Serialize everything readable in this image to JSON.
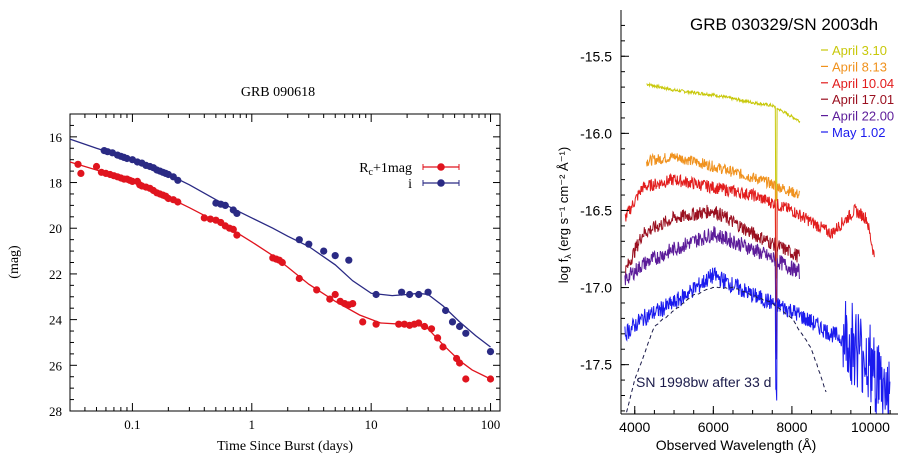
{
  "chart_data": [
    {
      "type": "scatter",
      "title": "GRB 090618",
      "xlabel": "Time Since Burst (days)",
      "ylabel": "(mag)",
      "xscale": "log",
      "xlim": [
        0.03,
        120
      ],
      "ylim": [
        28,
        15
      ],
      "y_inverted": true,
      "xticks": [
        {
          "v": 0.1,
          "label": "0.1"
        },
        {
          "v": 1,
          "label": "1"
        },
        {
          "v": 10,
          "label": "10"
        },
        {
          "v": 100,
          "label": "100"
        }
      ],
      "yticks": [
        16,
        18,
        20,
        22,
        24,
        26,
        28
      ],
      "legend_position": "top-right",
      "grid": false,
      "series": [
        {
          "name": "Rc+1mag",
          "legend_main": "R",
          "legend_sub": "c",
          "legend_rest": "+1mag",
          "color": "#e0141e",
          "points": [
            [
              0.035,
              17.2
            ],
            [
              0.037,
              17.6
            ],
            [
              0.05,
              17.3
            ],
            [
              0.055,
              17.55
            ],
            [
              0.06,
              17.6
            ],
            [
              0.065,
              17.65
            ],
            [
              0.07,
              17.7
            ],
            [
              0.075,
              17.75
            ],
            [
              0.08,
              17.8
            ],
            [
              0.085,
              17.85
            ],
            [
              0.09,
              17.85
            ],
            [
              0.095,
              17.9
            ],
            [
              0.1,
              17.95
            ],
            [
              0.11,
              17.95
            ],
            [
              0.115,
              18.1
            ],
            [
              0.12,
              18.15
            ],
            [
              0.13,
              18.2
            ],
            [
              0.14,
              18.25
            ],
            [
              0.15,
              18.35
            ],
            [
              0.16,
              18.45
            ],
            [
              0.17,
              18.5
            ],
            [
              0.18,
              18.55
            ],
            [
              0.19,
              18.6
            ],
            [
              0.2,
              18.7
            ],
            [
              0.22,
              18.75
            ],
            [
              0.24,
              18.85
            ],
            [
              0.4,
              19.55
            ],
            [
              0.45,
              19.6
            ],
            [
              0.5,
              19.65
            ],
            [
              0.55,
              19.75
            ],
            [
              0.6,
              19.9
            ],
            [
              0.65,
              20.0
            ],
            [
              0.7,
              20.05
            ],
            [
              0.75,
              20.3
            ],
            [
              1.5,
              21.3
            ],
            [
              1.6,
              21.35
            ],
            [
              1.7,
              21.4
            ],
            [
              1.8,
              21.5
            ],
            [
              2.5,
              22.2
            ],
            [
              3.5,
              22.7
            ],
            [
              4.5,
              23.1
            ],
            [
              5.0,
              22.9
            ],
            [
              5.5,
              23.2
            ],
            [
              6.0,
              23.3
            ],
            [
              6.5,
              23.35
            ],
            [
              7.0,
              23.3
            ],
            [
              8.5,
              24.1
            ],
            [
              11,
              24.2
            ],
            [
              17,
              24.2
            ],
            [
              19,
              24.2
            ],
            [
              21,
              24.25
            ],
            [
              23,
              24.2
            ],
            [
              25,
              24.15
            ],
            [
              28,
              24.3
            ],
            [
              32,
              24.4
            ],
            [
              36,
              24.8
            ],
            [
              40,
              25.2
            ],
            [
              52,
              25.7
            ],
            [
              55,
              25.9
            ],
            [
              62,
              26.6
            ],
            [
              100,
              26.6
            ]
          ],
          "curve": [
            [
              0.03,
              17.1
            ],
            [
              0.05,
              17.45
            ],
            [
              0.1,
              17.95
            ],
            [
              0.2,
              18.65
            ],
            [
              0.3,
              19.1
            ],
            [
              0.5,
              19.7
            ],
            [
              0.7,
              20.1
            ],
            [
              1,
              20.6
            ],
            [
              1.5,
              21.2
            ],
            [
              2,
              21.7
            ],
            [
              3,
              22.45
            ],
            [
              5,
              23.2
            ],
            [
              8,
              23.8
            ],
            [
              12,
              24.15
            ],
            [
              18,
              24.2
            ],
            [
              25,
              24.25
            ],
            [
              30,
              24.4
            ],
            [
              40,
              25.1
            ],
            [
              55,
              25.8
            ],
            [
              70,
              26.2
            ],
            [
              100,
              26.6
            ]
          ]
        },
        {
          "name": "i",
          "legend_main": "i",
          "legend_sub": "",
          "legend_rest": "",
          "color": "#2a2a84",
          "points": [
            [
              0.058,
              16.6
            ],
            [
              0.062,
              16.65
            ],
            [
              0.068,
              16.7
            ],
            [
              0.075,
              16.8
            ],
            [
              0.08,
              16.85
            ],
            [
              0.085,
              16.9
            ],
            [
              0.09,
              16.95
            ],
            [
              0.1,
              17.0
            ],
            [
              0.11,
              17.1
            ],
            [
              0.12,
              17.15
            ],
            [
              0.13,
              17.25
            ],
            [
              0.14,
              17.3
            ],
            [
              0.15,
              17.35
            ],
            [
              0.16,
              17.45
            ],
            [
              0.17,
              17.5
            ],
            [
              0.18,
              17.55
            ],
            [
              0.19,
              17.6
            ],
            [
              0.2,
              17.65
            ],
            [
              0.22,
              17.75
            ],
            [
              0.24,
              17.9
            ],
            [
              0.5,
              18.9
            ],
            [
              0.55,
              18.95
            ],
            [
              0.6,
              19.0
            ],
            [
              0.7,
              19.2
            ],
            [
              0.75,
              19.35
            ],
            [
              2.5,
              20.5
            ],
            [
              3.0,
              20.7
            ],
            [
              4.0,
              21.0
            ],
            [
              5.0,
              21.2
            ],
            [
              6.5,
              21.4
            ],
            [
              11,
              22.9
            ],
            [
              18,
              22.8
            ],
            [
              21,
              22.9
            ],
            [
              25,
              22.9
            ],
            [
              30,
              22.8
            ],
            [
              42,
              23.6
            ],
            [
              48,
              24.1
            ],
            [
              55,
              24.3
            ],
            [
              62,
              24.6
            ],
            [
              100,
              25.4
            ]
          ],
          "curve": [
            [
              0.03,
              16.1
            ],
            [
              0.05,
              16.5
            ],
            [
              0.1,
              17.0
            ],
            [
              0.2,
              17.65
            ],
            [
              0.3,
              18.1
            ],
            [
              0.5,
              18.75
            ],
            [
              0.7,
              19.15
            ],
            [
              1,
              19.55
            ],
            [
              1.5,
              20.0
            ],
            [
              2,
              20.35
            ],
            [
              3,
              20.8
            ],
            [
              5,
              21.6
            ],
            [
              7,
              22.3
            ],
            [
              10,
              22.85
            ],
            [
              15,
              22.95
            ],
            [
              20,
              22.9
            ],
            [
              25,
              22.85
            ],
            [
              30,
              22.9
            ],
            [
              40,
              23.4
            ],
            [
              55,
              24.1
            ],
            [
              75,
              24.7
            ],
            [
              100,
              25.2
            ]
          ]
        }
      ]
    },
    {
      "type": "line",
      "title": "GRB 030329/SN 2003dh",
      "xlabel": "Observed Wavelength (Å)",
      "ylabel_main": "log f",
      "ylabel_sub": "λ",
      "ylabel_units": "(erg s⁻¹ cm⁻² Å⁻¹)",
      "xlim": [
        3650,
        10700
      ],
      "ylim": [
        -17.82,
        -15.2
      ],
      "xticks": [
        4000,
        6000,
        8000,
        10000
      ],
      "yticks": [
        -15.5,
        -16.0,
        -16.5,
        -17.0,
        -17.5
      ],
      "legend_position": "top-right",
      "annotation": "SN 1998bw after 33 d",
      "series": [
        {
          "name": "April 3.10",
          "color": "#c8c80a",
          "xrange": [
            4300,
            8200
          ],
          "points": [
            [
              4300,
              -15.68
            ],
            [
              5000,
              -15.72
            ],
            [
              6000,
              -15.75
            ],
            [
              7000,
              -15.8
            ],
            [
              7500,
              -15.82
            ],
            [
              8200,
              -15.92
            ]
          ]
        },
        {
          "name": "April 8.13",
          "color": "#f0921e",
          "xrange": [
            4300,
            8200
          ],
          "points": [
            [
              4300,
              -16.18
            ],
            [
              5000,
              -16.15
            ],
            [
              5800,
              -16.2
            ],
            [
              6500,
              -16.25
            ],
            [
              7200,
              -16.3
            ],
            [
              8200,
              -16.4
            ]
          ]
        },
        {
          "name": "April 10.04",
          "color": "#e21d1d",
          "xrange": [
            3750,
            10100
          ],
          "points": [
            [
              3750,
              -16.55
            ],
            [
              4200,
              -16.35
            ],
            [
              5000,
              -16.3
            ],
            [
              6000,
              -16.35
            ],
            [
              7000,
              -16.4
            ],
            [
              8000,
              -16.5
            ],
            [
              9000,
              -16.65
            ],
            [
              9600,
              -16.5
            ],
            [
              9900,
              -16.55
            ],
            [
              10100,
              -16.8
            ]
          ]
        },
        {
          "name": "April 17.01",
          "color": "#9a1020",
          "xrange": [
            3750,
            8200
          ],
          "points": [
            [
              3750,
              -16.9
            ],
            [
              4200,
              -16.65
            ],
            [
              5000,
              -16.55
            ],
            [
              6000,
              -16.5
            ],
            [
              7000,
              -16.65
            ],
            [
              8200,
              -16.8
            ]
          ]
        },
        {
          "name": "April 22.00",
          "color": "#5c1c9a",
          "xrange": [
            3750,
            8200
          ],
          "points": [
            [
              3750,
              -16.95
            ],
            [
              4200,
              -16.85
            ],
            [
              5000,
              -16.75
            ],
            [
              6000,
              -16.65
            ],
            [
              7000,
              -16.75
            ],
            [
              8200,
              -16.9
            ]
          ]
        },
        {
          "name": "May 1.02",
          "color": "#1a1aee",
          "xrange": [
            3750,
            10500
          ],
          "points": [
            [
              3750,
              -17.3
            ],
            [
              4200,
              -17.2
            ],
            [
              5000,
              -17.1
            ],
            [
              6000,
              -16.92
            ],
            [
              7000,
              -17.05
            ],
            [
              8000,
              -17.15
            ],
            [
              9000,
              -17.3
            ],
            [
              9500,
              -17.35
            ],
            [
              10000,
              -17.5
            ],
            [
              10500,
              -17.7
            ]
          ]
        },
        {
          "name": "SN 1998bw after 33 d",
          "color": "#1b1b4a",
          "dashed": true,
          "xrange": [
            3750,
            8900
          ],
          "points": [
            [
              3750,
              -17.85
            ],
            [
              4000,
              -17.6
            ],
            [
              4500,
              -17.25
            ],
            [
              5000,
              -17.15
            ],
            [
              5500,
              -17.05
            ],
            [
              6000,
              -17.0
            ],
            [
              6500,
              -17.0
            ],
            [
              7000,
              -17.05
            ],
            [
              7500,
              -17.1
            ],
            [
              8000,
              -17.2
            ],
            [
              8500,
              -17.4
            ],
            [
              8900,
              -17.7
            ]
          ]
        }
      ]
    }
  ]
}
